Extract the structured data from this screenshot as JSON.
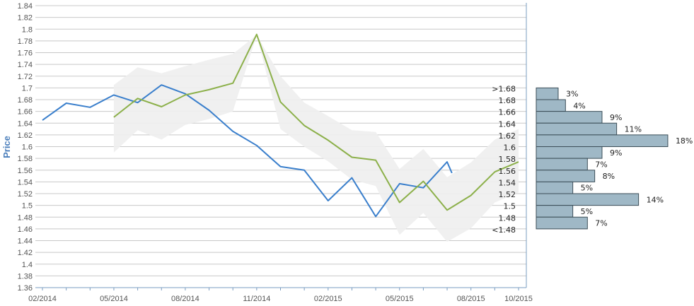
{
  "chart_data": {
    "type": "line",
    "ylabel": "Price",
    "xlabel": "",
    "title": "",
    "ylim": [
      1.36,
      1.84
    ],
    "y_ticks": [
      "1.84",
      "1.82",
      "1.8",
      "1.78",
      "1.76",
      "1.74",
      "1.72",
      "1.7",
      "1.68",
      "1.66",
      "1.64",
      "1.62",
      "1.6",
      "1.58",
      "1.56",
      "1.54",
      "1.52",
      "1.5",
      "1.48",
      "1.46",
      "1.44",
      "1.42",
      "1.4",
      "1.38",
      "1.36"
    ],
    "x_ticks": [
      "02/2014",
      "05/2014",
      "08/2014",
      "11/2014",
      "02/2015",
      "05/2015",
      "08/2015",
      "10/2015"
    ],
    "grid": true,
    "series": [
      {
        "color": "#3a7fcc",
        "points": [
          [
            "02/2014",
            1.645
          ],
          [
            "03/2014",
            1.674
          ],
          [
            "04/2014",
            1.667
          ],
          [
            "05/2014",
            1.688
          ],
          [
            "06/2014",
            1.675
          ],
          [
            "07/2014",
            1.705
          ],
          [
            "08/2014",
            1.69
          ],
          [
            "09/2014",
            1.662
          ],
          [
            "10/2014",
            1.626
          ],
          [
            "11/2014",
            1.602
          ],
          [
            "12/2014",
            1.566
          ],
          [
            "01/2015",
            1.56
          ],
          [
            "02/2015",
            1.508
          ],
          [
            "03/2015",
            1.547
          ],
          [
            "04/2015",
            1.481
          ],
          [
            "05/2015",
            1.537
          ],
          [
            "06/2015",
            1.53
          ],
          [
            "07/2015",
            1.574
          ],
          [
            "07/2015 (end)",
            1.555
          ]
        ]
      },
      {
        "color": "#8cb04a",
        "points": [
          [
            "05/2014",
            1.65
          ],
          [
            "06/2014",
            1.682
          ],
          [
            "07/2014",
            1.668
          ],
          [
            "08/2014",
            1.688
          ],
          [
            "09/2014",
            1.697
          ],
          [
            "10/2014",
            1.708
          ],
          [
            "11/2014",
            1.791
          ],
          [
            "12/2014",
            1.676
          ],
          [
            "01/2015",
            1.636
          ],
          [
            "02/2015",
            1.611
          ],
          [
            "03/2015",
            1.582
          ],
          [
            "04/2015",
            1.577
          ],
          [
            "05/2015",
            1.505
          ],
          [
            "06/2015",
            1.541
          ],
          [
            "07/2015",
            1.492
          ],
          [
            "08/2015",
            1.517
          ],
          [
            "09/2015",
            1.557
          ],
          [
            "10/2015",
            1.574
          ]
        ]
      }
    ],
    "band": {
      "color": "#eeeeee",
      "upper": [
        [
          "05/2014",
          1.705
        ],
        [
          "06/2014",
          1.735
        ],
        [
          "07/2014",
          1.725
        ],
        [
          "08/2014",
          1.737
        ],
        [
          "09/2014",
          1.748
        ],
        [
          "10/2014",
          1.758
        ],
        [
          "11/2014",
          1.79
        ],
        [
          "12/2014",
          1.72
        ],
        [
          "01/2015",
          1.675
        ],
        [
          "02/2015",
          1.652
        ],
        [
          "03/2015",
          1.628
        ],
        [
          "04/2015",
          1.625
        ],
        [
          "05/2015",
          1.562
        ],
        [
          "06/2015",
          1.596
        ],
        [
          "07/2015",
          1.548
        ],
        [
          "08/2015",
          1.573
        ],
        [
          "09/2015",
          1.612
        ],
        [
          "10/2015",
          1.63
        ]
      ],
      "lower": [
        [
          "05/2014",
          1.59
        ],
        [
          "06/2014",
          1.628
        ],
        [
          "07/2014",
          1.612
        ],
        [
          "08/2014",
          1.637
        ],
        [
          "09/2014",
          1.647
        ],
        [
          "10/2014",
          1.66
        ],
        [
          "11/2014",
          1.79
        ],
        [
          "12/2014",
          1.63
        ],
        [
          "01/2015",
          1.6
        ],
        [
          "02/2015",
          1.575
        ],
        [
          "03/2015",
          1.544
        ],
        [
          "04/2015",
          1.533
        ],
        [
          "05/2015",
          1.45
        ],
        [
          "06/2015",
          1.487
        ],
        [
          "07/2015",
          1.438
        ],
        [
          "08/2015",
          1.461
        ],
        [
          "09/2015",
          1.505
        ],
        [
          "10/2015",
          1.522
        ]
      ]
    },
    "histogram": {
      "color": "#9fb8c6",
      "border": "#3b4d57",
      "bins": [
        {
          "label": ">1.68",
          "low": 1.68,
          "high": 1.7,
          "percent": 3,
          "text": "3%"
        },
        {
          "label": "1.68",
          "low": 1.66,
          "high": 1.68,
          "percent": 4,
          "text": "4%"
        },
        {
          "label": "1.66",
          "low": 1.64,
          "high": 1.66,
          "percent": 9,
          "text": "9%"
        },
        {
          "label": "1.64",
          "low": 1.62,
          "high": 1.64,
          "percent": 11,
          "text": "11%"
        },
        {
          "label": "1.62",
          "low": 1.6,
          "high": 1.62,
          "percent": 18,
          "text": "18%"
        },
        {
          "label": "1.6",
          "low": 1.58,
          "high": 1.6,
          "percent": 9,
          "text": "9%"
        },
        {
          "label": "1.58",
          "low": 1.56,
          "high": 1.58,
          "percent": 7,
          "text": "7%"
        },
        {
          "label": "1.56",
          "low": 1.54,
          "high": 1.56,
          "percent": 8,
          "text": "8%"
        },
        {
          "label": "1.54",
          "low": 1.52,
          "high": 1.54,
          "percent": 5,
          "text": "5%"
        },
        {
          "label": "1.52",
          "low": 1.5,
          "high": 1.52,
          "percent": 14,
          "text": "14%"
        },
        {
          "label": "1.5",
          "low": 1.48,
          "high": 1.5,
          "percent": 5,
          "text": "5%"
        },
        {
          "label": "1.48",
          "low": 1.46,
          "high": 1.48,
          "percent": 7,
          "text": "7%"
        }
      ],
      "bottom_label": "<1.48"
    }
  }
}
